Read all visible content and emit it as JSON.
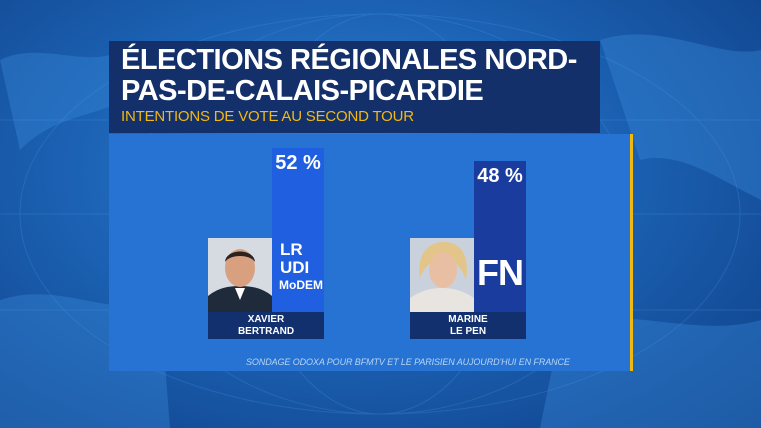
{
  "title": "ÉLECTIONS RÉGIONALES NORD-PAS-DE-CALAIS-PICARDIE",
  "subtitle": "INTENTIONS DE VOTE AU SECOND TOUR",
  "source": "SONDAGE ODOXA POUR BFMTV ET LE PARISIEN AUJOURD'HUI EN FRANCE",
  "colors": {
    "bar_lr": "#1f5fe0",
    "bar_fn": "#1a3c9e",
    "panel": "#2673d4",
    "accent": "#f2b90f"
  },
  "chart_data": {
    "type": "bar",
    "categories": [
      "XAVIER BERTRAND",
      "MARINE LE PEN"
    ],
    "values": [
      52,
      48
    ],
    "value_labels": [
      "52 %",
      "48 %"
    ],
    "ylim": [
      0,
      52
    ],
    "candidates": [
      {
        "name_line1": "XAVIER",
        "name_line2": "BERTRAND",
        "parties": [
          "LR",
          "UDI",
          "MoDEM"
        ],
        "value": 52,
        "label": "52 %"
      },
      {
        "name_line1": "MARINE",
        "name_line2": "LE PEN",
        "parties": [
          "FN"
        ],
        "value": 48,
        "label": "48 %"
      }
    ]
  }
}
